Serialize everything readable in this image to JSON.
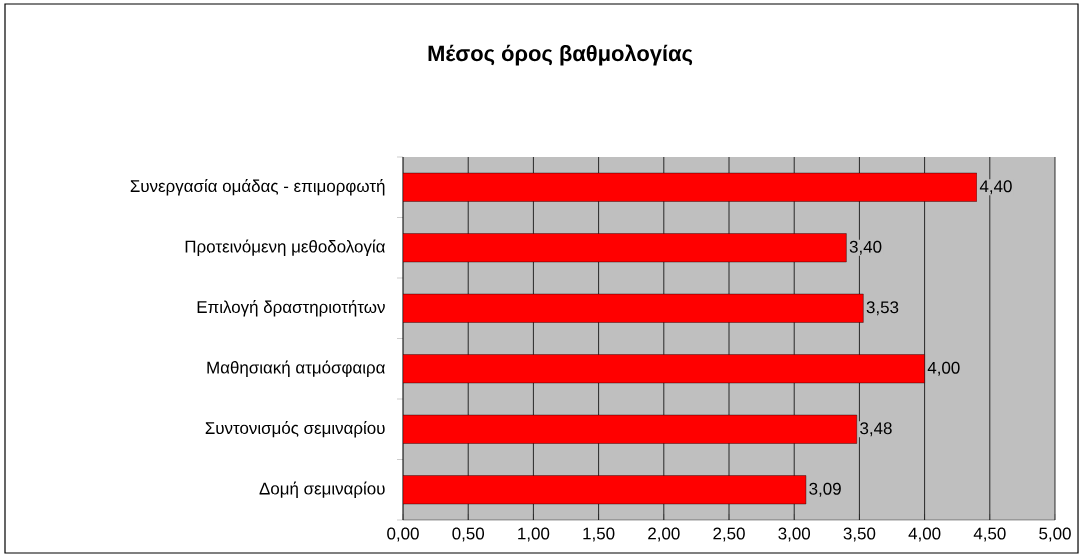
{
  "chart_data": {
    "type": "bar",
    "orientation": "horizontal",
    "title": "Μέσος όρος βαθμολογίας",
    "categories": [
      "Συνεργασία ομάδας - επιμορφωτή",
      "Προτεινόμενη μεθοδολογία",
      "Επιλογή δραστηριοτήτων",
      "Μαθησιακή ατμόσφαιρα",
      "Συντονισμός σεμιναρίου",
      "Δομή σεμιναρίου"
    ],
    "values": [
      4.4,
      3.4,
      3.53,
      4.0,
      3.48,
      3.09
    ],
    "value_labels": [
      "4,40",
      "3,40",
      "3,53",
      "4,00",
      "3,48",
      "3,09"
    ],
    "color": "#ff0000",
    "xlim": [
      0,
      5
    ],
    "xticks": [
      {
        "value": 0,
        "label": "0,00"
      },
      {
        "value": 0.5,
        "label": "0,50"
      },
      {
        "value": 1,
        "label": "1,00"
      },
      {
        "value": 1.5,
        "label": "1,50"
      },
      {
        "value": 2,
        "label": "2,00"
      },
      {
        "value": 2.5,
        "label": "2,50"
      },
      {
        "value": 3,
        "label": "3,00"
      },
      {
        "value": 3.5,
        "label": "3,50"
      },
      {
        "value": 4,
        "label": "4,00"
      },
      {
        "value": 4.5,
        "label": "4,50"
      },
      {
        "value": 5,
        "label": "5,00"
      }
    ],
    "grid": "x"
  }
}
